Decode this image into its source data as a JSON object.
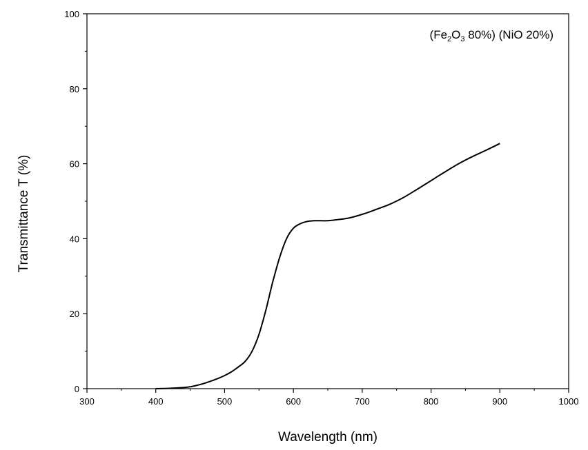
{
  "chart_data": {
    "type": "line",
    "title": "",
    "xlabel": "Wavelength (nm)",
    "ylabel": "Transmittance T (%)",
    "xlim": [
      300,
      1000
    ],
    "ylim": [
      0,
      100
    ],
    "x_ticks": [
      "300",
      "400",
      "500",
      "600",
      "700",
      "800",
      "900",
      "1000"
    ],
    "y_ticks": [
      "0",
      "20",
      "40",
      "60",
      "80",
      "100"
    ],
    "grid": false,
    "legend": {
      "placement": "top-right",
      "parts": {
        "open1": "(Fe",
        "sub1": "2",
        "mid1": "O",
        "sub2": "3",
        "rest1": " 80%) (NiO 20%)"
      }
    },
    "series": [
      {
        "name": "(Fe2O3 80%) (NiO 20%)",
        "color": "#000000",
        "x": [
          400,
          420,
          440,
          450,
          460,
          470,
          480,
          490,
          500,
          510,
          520,
          530,
          540,
          550,
          560,
          570,
          580,
          590,
          600,
          610,
          620,
          630,
          640,
          650,
          660,
          680,
          700,
          720,
          740,
          760,
          780,
          800,
          820,
          840,
          860,
          880,
          900
        ],
        "y": [
          0.0,
          0.1,
          0.3,
          0.5,
          0.9,
          1.4,
          2.0,
          2.7,
          3.5,
          4.5,
          5.8,
          7.3,
          10.0,
          14.5,
          21.0,
          28.5,
          35.0,
          40.0,
          42.8,
          44.0,
          44.6,
          44.8,
          44.8,
          44.8,
          45.0,
          45.5,
          46.5,
          47.8,
          49.2,
          51.0,
          53.2,
          55.5,
          57.8,
          60.0,
          61.9,
          63.6,
          65.4
        ]
      }
    ]
  }
}
